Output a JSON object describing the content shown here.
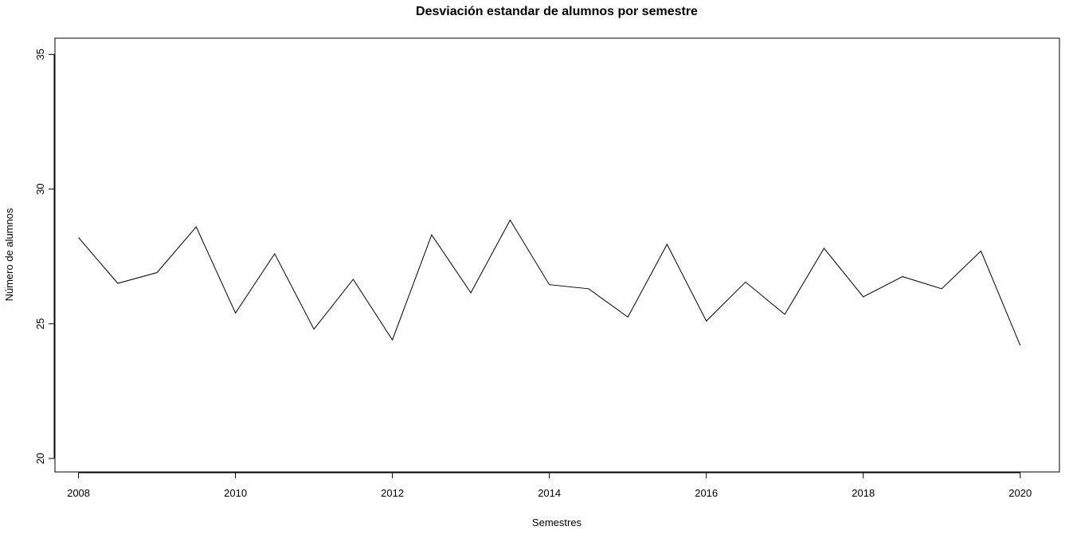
{
  "chart_data": {
    "type": "line",
    "title": "Desviación estandar de alumnos por semestre",
    "xlabel": "Semestres",
    "ylabel": "Número de alumnos",
    "xlim": [
      2007.7,
      2020.5
    ],
    "ylim": [
      19.5,
      35.6
    ],
    "x_ticks": [
      2008,
      2010,
      2012,
      2014,
      2016,
      2018,
      2020
    ],
    "x_tick_labels": [
      "2008",
      "2010",
      "2012",
      "2014",
      "2016",
      "2018",
      "2020"
    ],
    "y_ticks": [
      20,
      25,
      30,
      35
    ],
    "y_tick_labels": [
      "20",
      "25",
      "30",
      "35"
    ],
    "grid": false,
    "line_color": "#000000",
    "series": [
      {
        "x": [
          2008,
          2008.5,
          2009,
          2009.5,
          2010,
          2010.5,
          2011,
          2011.5,
          2012,
          2012.5,
          2013,
          2013.5,
          2014,
          2014.5,
          2015,
          2015.5,
          2016,
          2016.5,
          2017,
          2017.5,
          2018,
          2018.5,
          2019,
          2019.5,
          2020
        ],
        "values": [
          28.2,
          26.5,
          26.9,
          28.6,
          25.4,
          27.6,
          24.8,
          26.65,
          24.4,
          28.3,
          26.15,
          28.85,
          26.45,
          26.3,
          25.25,
          27.95,
          25.1,
          26.55,
          25.35,
          27.8,
          26.0,
          26.75,
          26.3,
          27.7,
          24.2
        ]
      }
    ]
  }
}
